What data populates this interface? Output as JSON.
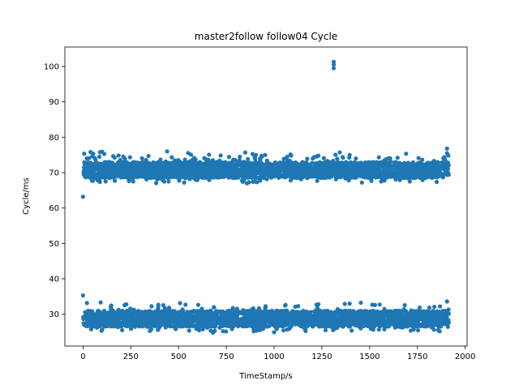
{
  "chart_data": {
    "type": "scatter",
    "title": "master2follow follow04 Cycle",
    "xlabel": "TimeStamp/s",
    "ylabel": "Cycle/ms",
    "xlim": [
      -95,
      2010
    ],
    "ylim": [
      21.0,
      105.5
    ],
    "xticks": [
      0,
      250,
      500,
      750,
      1000,
      1250,
      1500,
      1750,
      2000
    ],
    "yticks": [
      30,
      40,
      50,
      60,
      70,
      80,
      90,
      100
    ],
    "grid": false,
    "marker_color": "#1f77b4",
    "x_range": [
      0,
      1915
    ],
    "bands": [
      {
        "center": 70.5,
        "core_low": 68.5,
        "core_high": 73.0,
        "min": 66.0,
        "max": 77.0
      },
      {
        "center": 28.5,
        "core_low": 26.5,
        "core_high": 31.0,
        "min": 24.5,
        "max": 35.5
      }
    ],
    "outliers": [
      {
        "x": 0,
        "y": 63.2
      },
      {
        "x": 0,
        "y": 35.3
      },
      {
        "x": 1312,
        "y": 101.3
      },
      {
        "x": 1312,
        "y": 100.5
      },
      {
        "x": 1312,
        "y": 99.5
      },
      {
        "x": 1905,
        "y": 76.8
      },
      {
        "x": 1905,
        "y": 75.5
      },
      {
        "x": 1905,
        "y": 33.6
      },
      {
        "x": 440,
        "y": 76.0
      },
      {
        "x": 100,
        "y": 75.9
      },
      {
        "x": 1370,
        "y": 32.9
      },
      {
        "x": 680,
        "y": 24.8
      },
      {
        "x": 1000,
        "y": 24.9
      }
    ]
  }
}
